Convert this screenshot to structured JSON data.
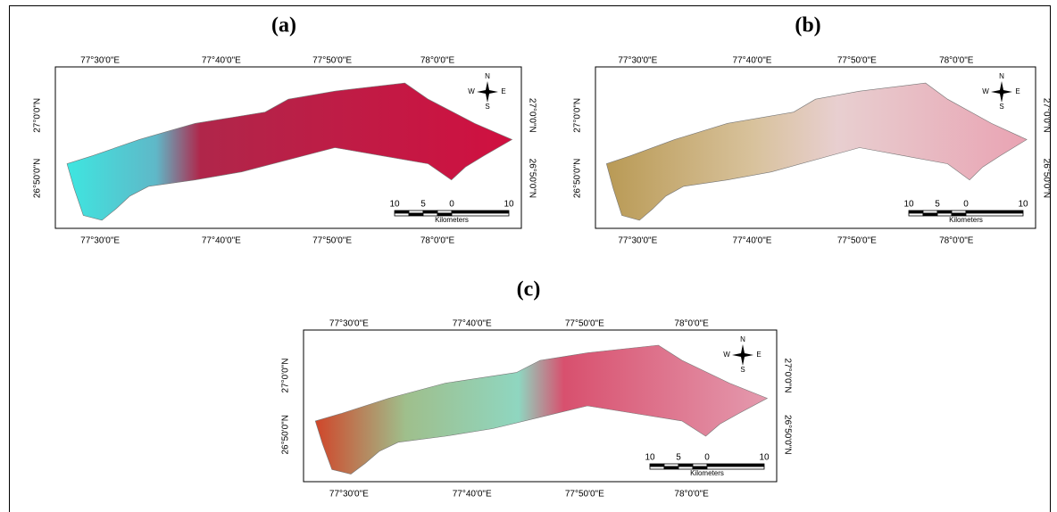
{
  "panels": [
    {
      "label": "(a)",
      "top_longitudes": [
        "77°30'0\"E",
        "77°40'0\"E",
        "77°50'0\"E",
        "78°0'0\"E"
      ],
      "bottom_longitudes": [
        "77°30'0\"E",
        "77°40'0\"E",
        "77°50'0\"E",
        "78°0'0\"E"
      ],
      "left_latitudes": [
        "27°0'0\"N",
        "26°50'0\"N"
      ],
      "right_latitudes": [
        "27°0'0\"N",
        "26°50'0\"N"
      ],
      "scale": [
        "10",
        "5",
        "0",
        "10"
      ],
      "scale_unit": "Kilometers",
      "compass": {
        "n": "N",
        "s": "S",
        "e": "E",
        "w": "W"
      }
    },
    {
      "label": "(b)",
      "top_longitudes": [
        "77°30'0\"E",
        "77°40'0\"E",
        "77°50'0\"E",
        "78°0'0\"E"
      ],
      "bottom_longitudes": [
        "77°30'0\"E",
        "77°40'0\"E",
        "77°50'0\"E",
        "78°0'0\"E"
      ],
      "left_latitudes": [
        "27°0'0\"N",
        "26°50'0\"N"
      ],
      "right_latitudes": [
        "27°0'0\"N",
        "26°50'0\"N"
      ],
      "scale": [
        "10",
        "5",
        "0",
        "10"
      ],
      "scale_unit": "Kilometers",
      "compass": {
        "n": "N",
        "s": "S",
        "e": "E",
        "w": "W"
      }
    },
    {
      "label": "(c)",
      "top_longitudes": [
        "77°30'0\"E",
        "77°40'0\"E",
        "77°50'0\"E",
        "78°0'0\"E"
      ],
      "bottom_longitudes": [
        "77°30'0\"E",
        "77°40'0\"E",
        "77°50'0\"E",
        "78°0'0\"E"
      ],
      "left_latitudes": [
        "27°0'0\"N",
        "26°50'0\"N"
      ],
      "right_latitudes": [
        "27°0'0\"N",
        "26°50'0\"N"
      ],
      "scale": [
        "10",
        "5",
        "0",
        "10"
      ],
      "scale_unit": "Kilometers",
      "compass": {
        "n": "N",
        "s": "S",
        "e": "E",
        "w": "W"
      }
    }
  ]
}
